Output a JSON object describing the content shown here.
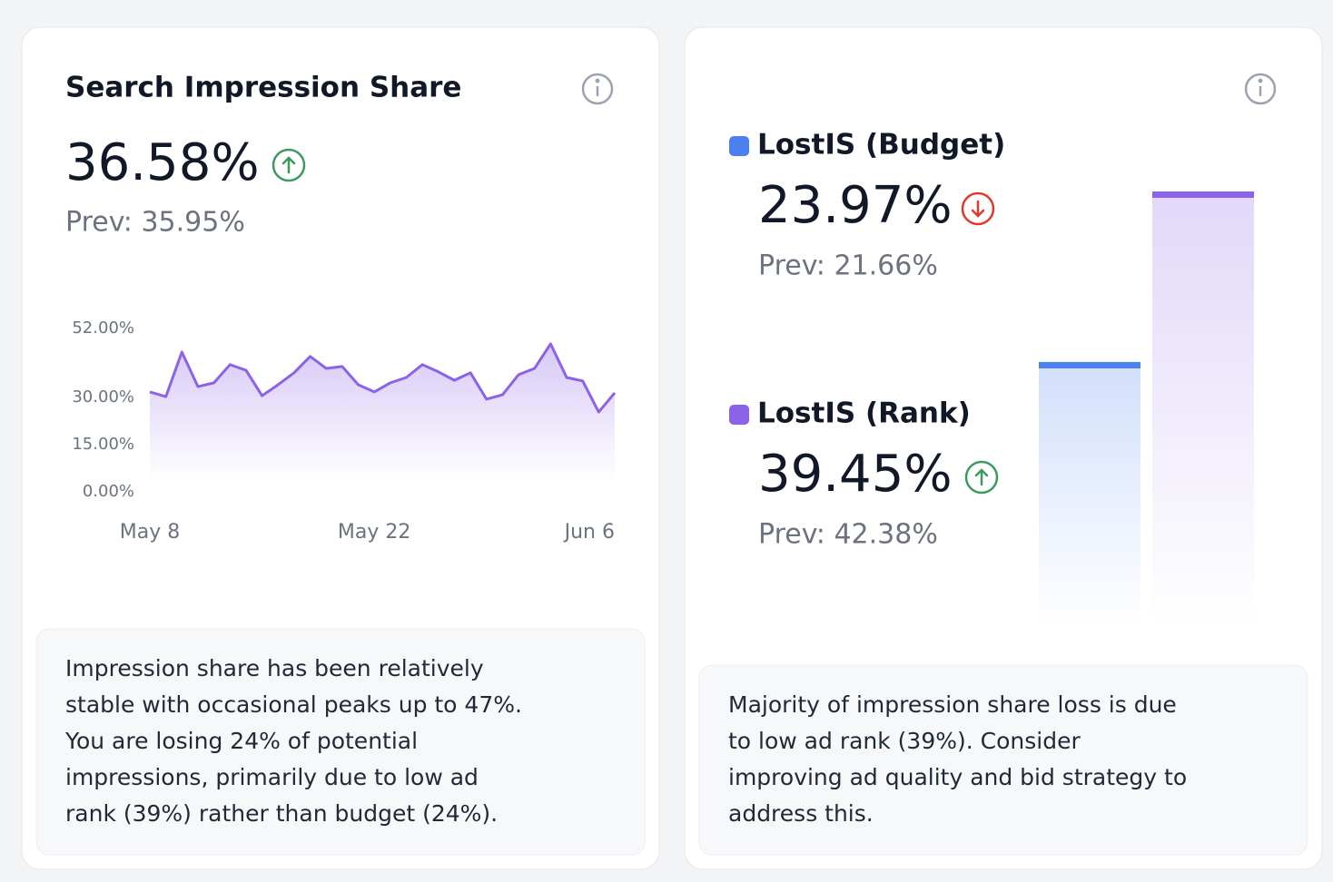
{
  "chart_data": [
    {
      "type": "line",
      "title": "Search Impression Share",
      "value_label": "36.58%",
      "prev_label": "Prev: 35.95%",
      "trend": "up",
      "categories": [
        "May 8",
        null,
        null,
        null,
        null,
        null,
        null,
        null,
        null,
        null,
        null,
        null,
        null,
        null,
        "May 22",
        null,
        null,
        null,
        null,
        null,
        null,
        null,
        null,
        null,
        null,
        null,
        null,
        null,
        null,
        "Jun 6"
      ],
      "values": [
        31.8,
        30.3,
        44.5,
        33.5,
        34.7,
        40.5,
        38.7,
        30.6,
        34.1,
        37.9,
        43.1,
        39.3,
        39.9,
        34.1,
        31.8,
        34.7,
        36.4,
        40.5,
        38.2,
        35.5,
        37.9,
        29.5,
        30.9,
        37.3,
        39.3,
        47.1,
        36.4,
        35.3,
        25.4,
        31.5
      ],
      "color": "#8b62e8",
      "ylim": [
        0,
        52
      ],
      "yticks": [
        {
          "value": 0,
          "label": "0.00%"
        },
        {
          "value": 15,
          "label": "15.00%"
        },
        {
          "value": 30,
          "label": "30.00%"
        },
        {
          "value": 52,
          "label": "52.00%"
        }
      ],
      "insight": [
        "Impression share has been relatively",
        "stable with occasional peaks up to 47%.",
        "You are losing 24% of potential",
        "impressions, primarily due to low ad",
        "rank (39%) rather than budget (24%)."
      ]
    },
    {
      "type": "bar",
      "categories": [
        "LostIS (Budget)",
        "LostIS (Rank)"
      ],
      "values": [
        23.97,
        39.45
      ],
      "value_labels": [
        "23.97%",
        "39.45%"
      ],
      "prev_labels": [
        "Prev: 21.66%",
        "Prev: 42.38%"
      ],
      "trends": [
        "down",
        "up"
      ],
      "colors": [
        "#4a80f0",
        "#8b62e8"
      ],
      "insight": [
        "Majority of impression share loss is due",
        "to low ad rank (39%). Consider",
        "improving ad quality and bid strategy to",
        "address this."
      ]
    }
  ]
}
